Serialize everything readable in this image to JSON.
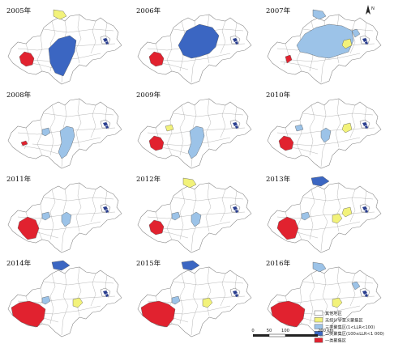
{
  "years": [
    "2005年",
    "2006年",
    "2007年",
    "2008年",
    "2009年",
    "2010年",
    "2011年",
    "2012年",
    "2013年",
    "2014年",
    "2015年",
    "2016年"
  ],
  "colors": {
    "other": "#ffffff",
    "unknown": "#f2f27a",
    "tier3": "#9cc3e8",
    "tier2": "#3b66c2",
    "tier1": "#e1222f",
    "outline": "#8a8a8a",
    "border": "#9a9a9a"
  },
  "panels": [
    {
      "year": "2005年",
      "north": "unknown",
      "center": "tier2_big",
      "east": "",
      "west": "tier1"
    },
    {
      "year": "2006年",
      "north": "",
      "center": "tier2_huge",
      "east": "",
      "west": "tier1"
    },
    {
      "year": "2007年",
      "north": "tier3",
      "center": "tier3_huge",
      "east": "unknown",
      "west": "tier1_small",
      "ne": "tier3"
    },
    {
      "year": "2008年",
      "north": "",
      "center": "tier3_mid",
      "east": "",
      "west": "tier1_tiny",
      "wt3": "tier3"
    },
    {
      "year": "2009年",
      "north": "",
      "center": "tier3_mid",
      "east": "",
      "west": "tier1",
      "nw": "unknown"
    },
    {
      "year": "2010年",
      "north": "",
      "center": "tier3_small",
      "east": "unknown",
      "west": "tier1",
      "nw": "tier3"
    },
    {
      "year": "2011年",
      "north": "",
      "center": "tier3_small",
      "east": "",
      "west": "tier1_big",
      "wt3": "tier3"
    },
    {
      "year": "2012年",
      "north": "unknown",
      "center": "tier3_small",
      "east": "",
      "west": "tier1",
      "wt3": "tier3"
    },
    {
      "year": "2013年",
      "north": "tier2",
      "center": "unknown_small",
      "east": "unknown",
      "west": "tier1_big",
      "wt3": "tier3"
    },
    {
      "year": "2014年",
      "north": "tier2",
      "center": "unknown_small",
      "east": "",
      "west": "tier1_huge",
      "wt3": "tier3"
    },
    {
      "year": "2015年",
      "north": "tier2",
      "center": "unknown_small",
      "east": "",
      "west": "tier1_huge",
      "wt3": "tier3"
    },
    {
      "year": "2016年",
      "north": "tier3",
      "center": "unknown_small",
      "east": "",
      "west": "tier1_huge",
      "ne": "tier3"
    }
  ],
  "north_arrow": "N",
  "legend": {
    "items": [
      {
        "label": "其他地区",
        "color": "other"
      },
      {
        "label": "无统计学意义聚集区",
        "color": "unknown"
      },
      {
        "label": "三类聚集区(1<LLR<100)",
        "color": "tier3"
      },
      {
        "label": "二类聚集区(100≤LLR<1 000)",
        "color": "tier2"
      },
      {
        "label": "一类聚集区",
        "color": "tier1"
      }
    ]
  },
  "scale": {
    "ticks": [
      "0",
      "50",
      "100",
      "200 km"
    ]
  }
}
